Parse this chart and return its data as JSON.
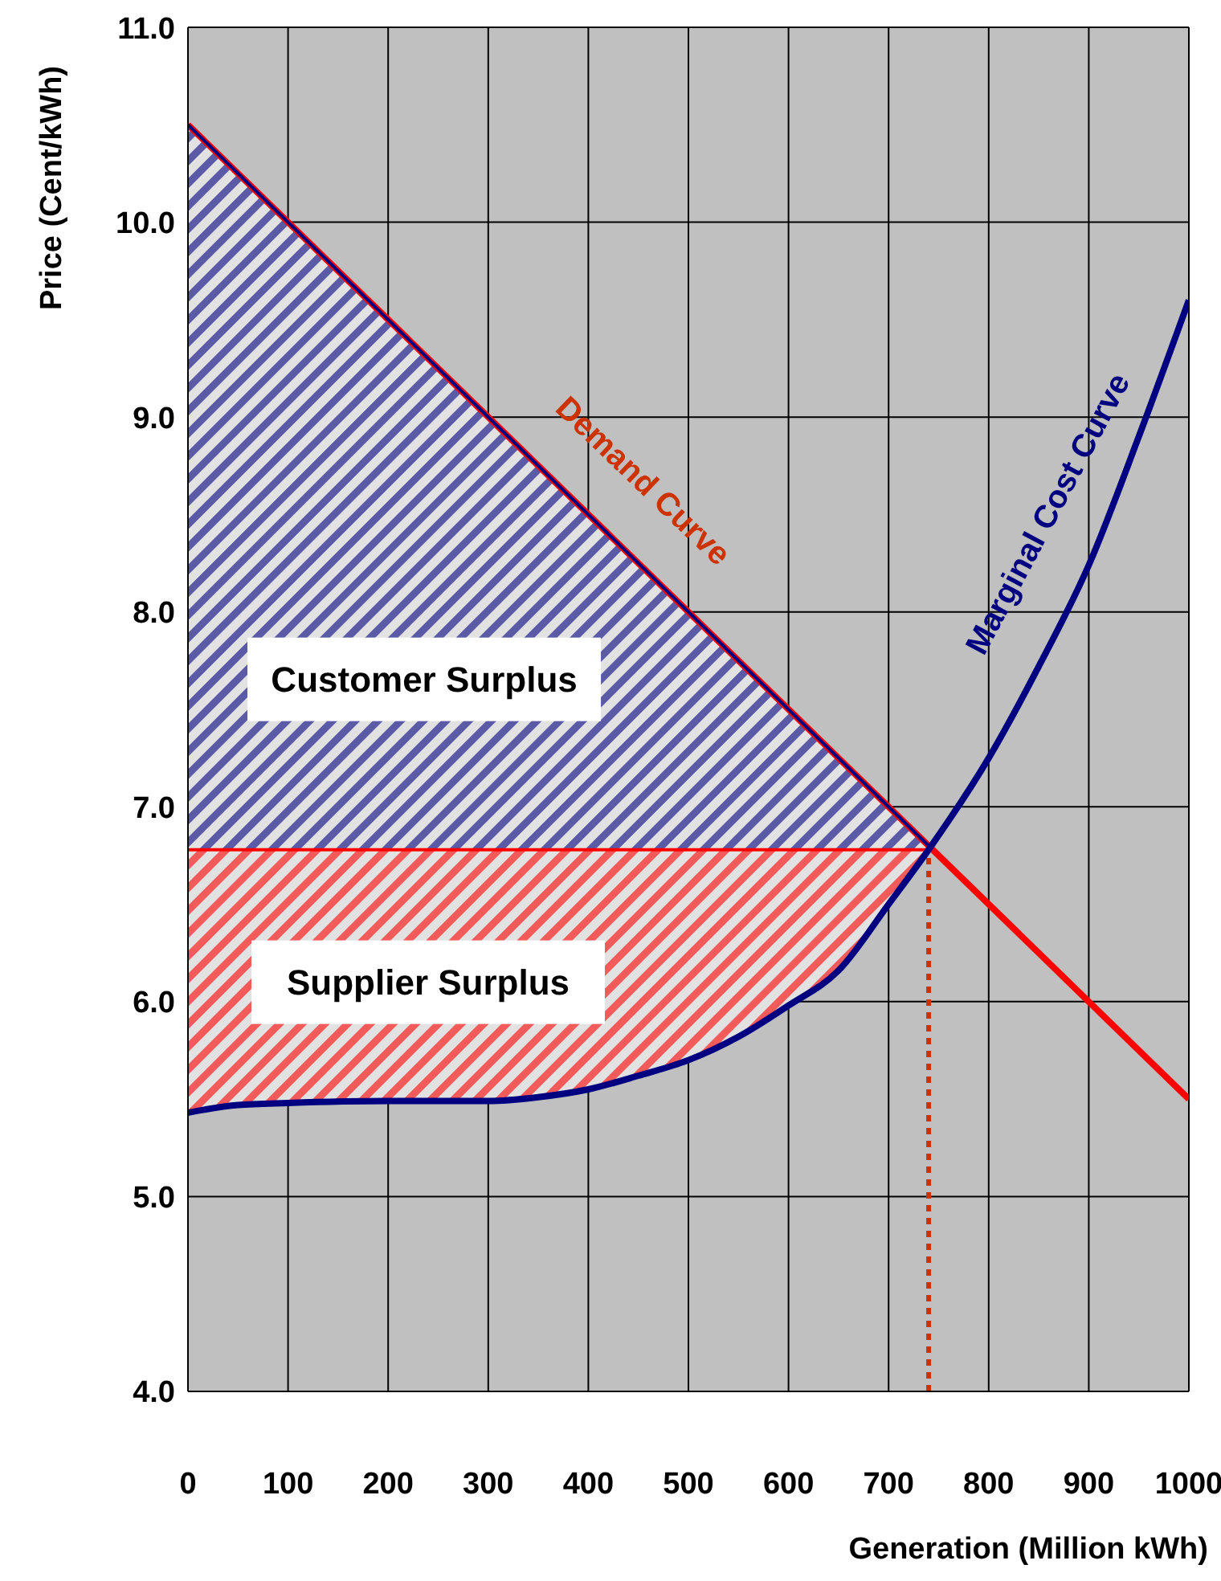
{
  "chart_data": {
    "type": "line",
    "xlabel": "Generation (Million kWh)",
    "ylabel": "Price (Cent/kWh)",
    "xlim": [
      0,
      1000
    ],
    "xticks": [
      0,
      100,
      200,
      300,
      400,
      500,
      600,
      700,
      800,
      900,
      1000
    ],
    "ylim": [
      4,
      11
    ],
    "yticks": [
      {
        "value": 4,
        "label": "4.0"
      },
      {
        "value": 5,
        "label": "5.0"
      },
      {
        "value": 6,
        "label": "6.0"
      },
      {
        "value": 7,
        "label": "7.0"
      },
      {
        "value": 8,
        "label": "8.0"
      },
      {
        "value": 9,
        "label": "9.0"
      },
      {
        "value": 10,
        "label": "10.0"
      },
      {
        "value": 11,
        "label": "11.0"
      }
    ],
    "grid": true,
    "series": [
      {
        "color": "#ff0000",
        "x": [
          0,
          1000
        ],
        "values": [
          10.5,
          5.5
        ]
      },
      {
        "color": "#000080",
        "x": [
          0,
          740
        ],
        "values": [
          10.5,
          6.8
        ],
        "lower": [
          6.78,
          6.78
        ],
        "upper": [
          10.5,
          6.8
        ]
      },
      {
        "color": "#ff0000",
        "x": [
          0,
          50,
          100,
          200,
          300,
          350,
          400,
          450,
          500,
          550,
          600,
          650,
          700,
          740
        ],
        "values": [
          6.78,
          6.78,
          6.78,
          6.78,
          6.78,
          6.78,
          6.78,
          6.78,
          6.78,
          6.78,
          6.78,
          6.78,
          6.78,
          6.78
        ],
        "lower": [
          5.43,
          5.47,
          5.48,
          5.49,
          5.49,
          5.51,
          5.55,
          5.62,
          5.7,
          5.82,
          5.98,
          6.16,
          6.5,
          6.78
        ],
        "upper": [
          6.78,
          6.78,
          6.78,
          6.78,
          6.78,
          6.78,
          6.78,
          6.78,
          6.78,
          6.78,
          6.78,
          6.78,
          6.78,
          6.78
        ]
      },
      {
        "color": "#cc3300",
        "line_style": "dotted",
        "x": [
          740,
          740
        ],
        "values": [
          4,
          6.78
        ]
      },
      {
        "color": "#000080",
        "x": [
          0,
          50,
          100,
          200,
          300,
          350,
          400,
          450,
          500,
          550,
          600,
          650,
          700,
          740,
          800,
          850,
          900,
          950,
          1000
        ],
        "values": [
          5.43,
          5.47,
          5.48,
          5.49,
          5.49,
          5.51,
          5.55,
          5.62,
          5.7,
          5.82,
          5.98,
          6.16,
          6.5,
          6.78,
          7.25,
          7.72,
          8.24,
          8.9,
          9.6
        ]
      }
    ],
    "annotations": [
      "Customer Surplus",
      "Supplier Surplus",
      "Demand Curve",
      "Marginal Cost Curve"
    ]
  }
}
